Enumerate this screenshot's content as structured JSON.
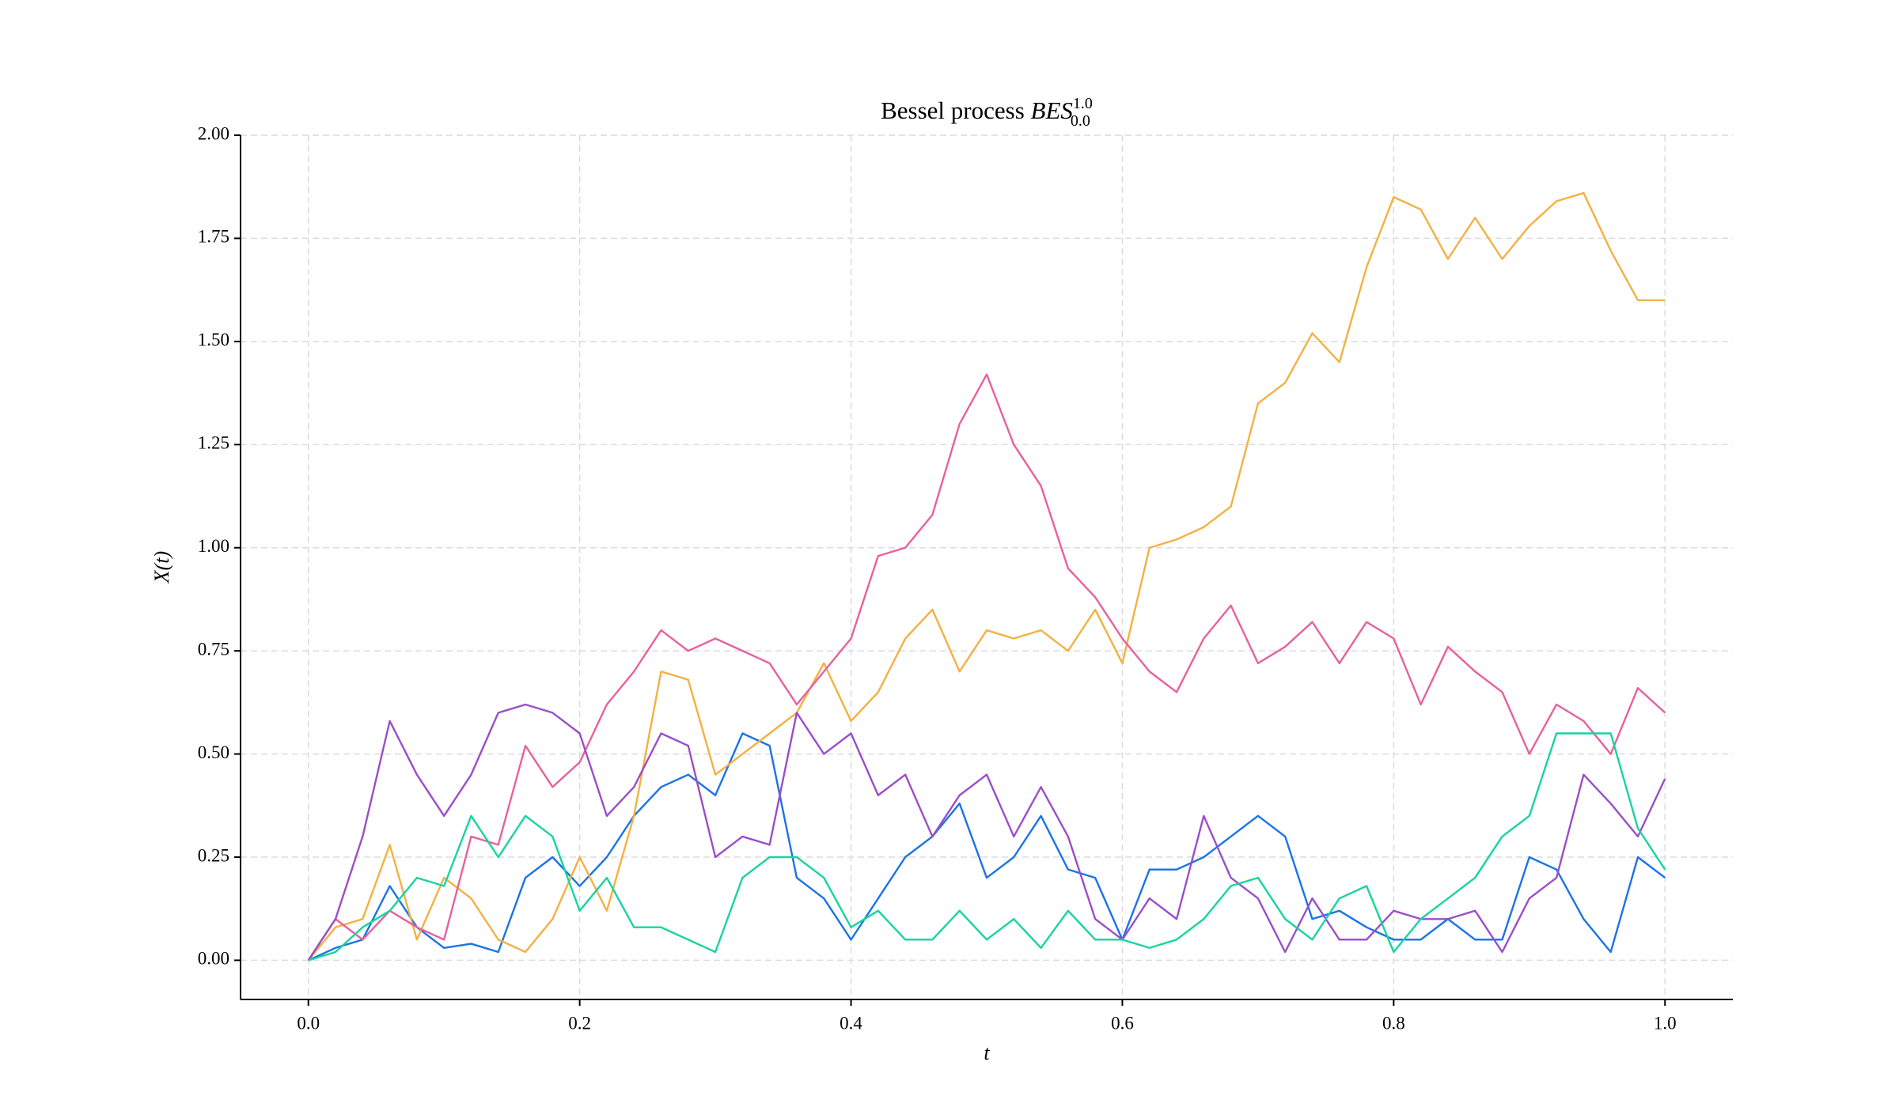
{
  "chart_data": {
    "type": "line",
    "title": "Bessel process",
    "title_symbol": "BES",
    "title_sup": "1.0",
    "title_sub": "0.0",
    "xlabel": "t",
    "ylabel": "X(t)",
    "x": [
      0,
      0.02,
      0.04,
      0.06,
      0.08,
      0.1,
      0.12,
      0.14,
      0.16,
      0.18,
      0.2,
      0.22,
      0.24,
      0.26,
      0.28,
      0.3,
      0.32,
      0.34,
      0.36,
      0.38,
      0.4,
      0.42,
      0.44,
      0.46,
      0.48,
      0.5,
      0.52,
      0.54,
      0.56,
      0.58,
      0.6,
      0.62,
      0.64,
      0.66,
      0.68,
      0.7,
      0.72,
      0.74,
      0.76,
      0.78,
      0.8,
      0.82,
      0.84,
      0.86,
      0.88,
      0.9,
      0.92,
      0.94,
      0.96,
      0.98,
      1.0
    ],
    "series": [
      {
        "color": "#1a73e8",
        "values": [
          0,
          0.03,
          0.05,
          0.18,
          0.08,
          0.03,
          0.04,
          0.02,
          0.2,
          0.25,
          0.18,
          0.25,
          0.35,
          0.42,
          0.45,
          0.4,
          0.55,
          0.52,
          0.2,
          0.15,
          0.05,
          0.15,
          0.25,
          0.3,
          0.38,
          0.2,
          0.25,
          0.35,
          0.22,
          0.2,
          0.05,
          0.22,
          0.22,
          0.25,
          0.3,
          0.35,
          0.3,
          0.1,
          0.12,
          0.08,
          0.05,
          0.05,
          0.1,
          0.05,
          0.05,
          0.25,
          0.22,
          0.1,
          0.02,
          0.25,
          0.2
        ]
      },
      {
        "color": "#f5b041",
        "values": [
          0,
          0.08,
          0.1,
          0.28,
          0.05,
          0.2,
          0.15,
          0.05,
          0.02,
          0.1,
          0.25,
          0.12,
          0.35,
          0.7,
          0.68,
          0.45,
          0.5,
          0.55,
          0.6,
          0.72,
          0.58,
          0.65,
          0.78,
          0.85,
          0.7,
          0.8,
          0.78,
          0.8,
          0.75,
          0.85,
          0.72,
          1.0,
          1.02,
          1.05,
          1.1,
          1.35,
          1.4,
          1.52,
          1.45,
          1.68,
          1.85,
          1.82,
          1.7,
          1.8,
          1.7,
          1.78,
          1.84,
          1.86,
          1.72,
          1.6,
          1.6
        ]
      },
      {
        "color": "#e8609e",
        "values": [
          0,
          0.1,
          0.05,
          0.12,
          0.08,
          0.05,
          0.3,
          0.28,
          0.52,
          0.42,
          0.48,
          0.62,
          0.7,
          0.8,
          0.75,
          0.78,
          0.75,
          0.72,
          0.62,
          0.7,
          0.78,
          0.98,
          1.0,
          1.08,
          1.3,
          1.42,
          1.25,
          1.15,
          0.95,
          0.88,
          0.78,
          0.7,
          0.65,
          0.78,
          0.86,
          0.72,
          0.76,
          0.82,
          0.72,
          0.82,
          0.78,
          0.62,
          0.76,
          0.7,
          0.65,
          0.5,
          0.62,
          0.58,
          0.5,
          0.66,
          0.6
        ]
      },
      {
        "color": "#9b4dca",
        "values": [
          0,
          0.1,
          0.3,
          0.58,
          0.45,
          0.35,
          0.45,
          0.6,
          0.62,
          0.6,
          0.55,
          0.35,
          0.42,
          0.55,
          0.52,
          0.25,
          0.3,
          0.28,
          0.6,
          0.5,
          0.55,
          0.4,
          0.45,
          0.3,
          0.4,
          0.45,
          0.3,
          0.42,
          0.3,
          0.1,
          0.05,
          0.15,
          0.1,
          0.35,
          0.2,
          0.15,
          0.02,
          0.15,
          0.05,
          0.05,
          0.12,
          0.1,
          0.1,
          0.12,
          0.02,
          0.15,
          0.2,
          0.45,
          0.38,
          0.3,
          0.44
        ]
      },
      {
        "color": "#17d4a0",
        "values": [
          0,
          0.02,
          0.08,
          0.12,
          0.2,
          0.18,
          0.35,
          0.25,
          0.35,
          0.3,
          0.12,
          0.2,
          0.08,
          0.08,
          0.05,
          0.02,
          0.2,
          0.25,
          0.25,
          0.2,
          0.08,
          0.12,
          0.05,
          0.05,
          0.12,
          0.05,
          0.1,
          0.03,
          0.12,
          0.05,
          0.05,
          0.03,
          0.05,
          0.1,
          0.18,
          0.2,
          0.1,
          0.05,
          0.15,
          0.18,
          0.02,
          0.1,
          0.15,
          0.2,
          0.3,
          0.35,
          0.55,
          0.55,
          0.55,
          0.32,
          0.22
        ]
      }
    ],
    "xlim": [
      -0.05,
      1.05
    ],
    "ylim": [
      -0.095,
      2.0
    ],
    "xticks": [
      {
        "value": 0,
        "label": "0.0"
      },
      {
        "value": 0.2,
        "label": "0.2"
      },
      {
        "value": 0.4,
        "label": "0.4"
      },
      {
        "value": 0.6,
        "label": "0.6"
      },
      {
        "value": 0.8,
        "label": "0.8"
      },
      {
        "value": 1,
        "label": "1.0"
      }
    ],
    "yticks": [
      {
        "value": 0,
        "label": "0.00"
      },
      {
        "value": 0.25,
        "label": "0.25"
      },
      {
        "value": 0.5,
        "label": "0.50"
      },
      {
        "value": 0.75,
        "label": "0.75"
      },
      {
        "value": 1,
        "label": "1.00"
      },
      {
        "value": 1.25,
        "label": "1.25"
      },
      {
        "value": 1.5,
        "label": "1.50"
      },
      {
        "value": 1.75,
        "label": "1.75"
      },
      {
        "value": 2,
        "label": "2.00"
      }
    ],
    "grid": true
  }
}
